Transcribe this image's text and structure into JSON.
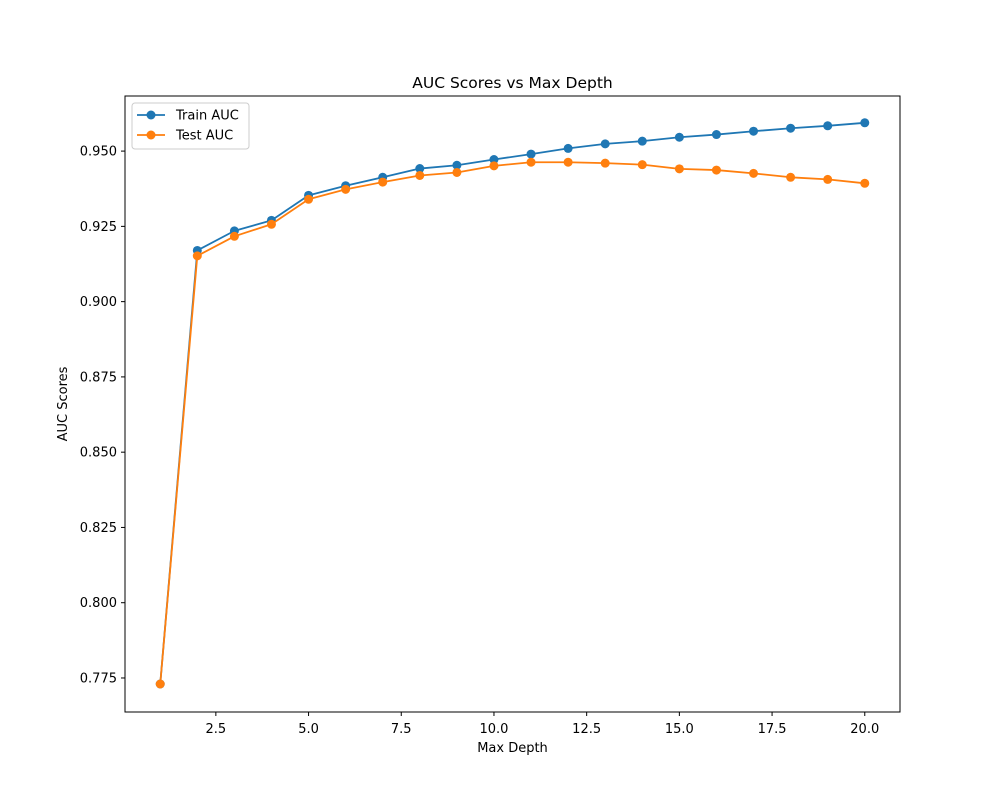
{
  "chart_data": {
    "type": "line",
    "title": "AUC Scores vs Max Depth",
    "xlabel": "Max Depth",
    "ylabel": "AUC Scores",
    "xlim": [
      0.05,
      20.95
    ],
    "ylim": [
      0.7637,
      0.9683
    ],
    "xticks": [
      2.5,
      5.0,
      7.5,
      10.0,
      12.5,
      15.0,
      17.5,
      20.0
    ],
    "xtick_labels": [
      "2.5",
      "5.0",
      "7.5",
      "10.0",
      "12.5",
      "15.0",
      "17.5",
      "20.0"
    ],
    "yticks": [
      0.775,
      0.8,
      0.825,
      0.85,
      0.875,
      0.9,
      0.925,
      0.95
    ],
    "ytick_labels": [
      "0.775",
      "0.800",
      "0.825",
      "0.850",
      "0.875",
      "0.900",
      "0.925",
      "0.950"
    ],
    "grid": false,
    "legend_position": "top-left",
    "x": [
      1,
      2,
      3,
      4,
      5,
      6,
      7,
      8,
      9,
      10,
      11,
      12,
      13,
      14,
      15,
      16,
      17,
      18,
      19,
      20
    ],
    "series": [
      {
        "name": "Train AUC",
        "color": "#1f77b4",
        "marker": "circle",
        "values": [
          0.773,
          0.917,
          0.9235,
          0.927,
          0.9353,
          0.9385,
          0.9413,
          0.9442,
          0.9453,
          0.9472,
          0.949,
          0.9509,
          0.9524,
          0.9533,
          0.9546,
          0.9555,
          0.9566,
          0.9576,
          0.9584,
          0.9594
        ]
      },
      {
        "name": "Test AUC",
        "color": "#ff7f0e",
        "marker": "circle",
        "values": [
          0.773,
          0.9152,
          0.9217,
          0.9257,
          0.934,
          0.9373,
          0.9397,
          0.9419,
          0.9429,
          0.9451,
          0.9463,
          0.9463,
          0.946,
          0.9455,
          0.9441,
          0.9437,
          0.9426,
          0.9413,
          0.9406,
          0.9393
        ]
      }
    ]
  }
}
